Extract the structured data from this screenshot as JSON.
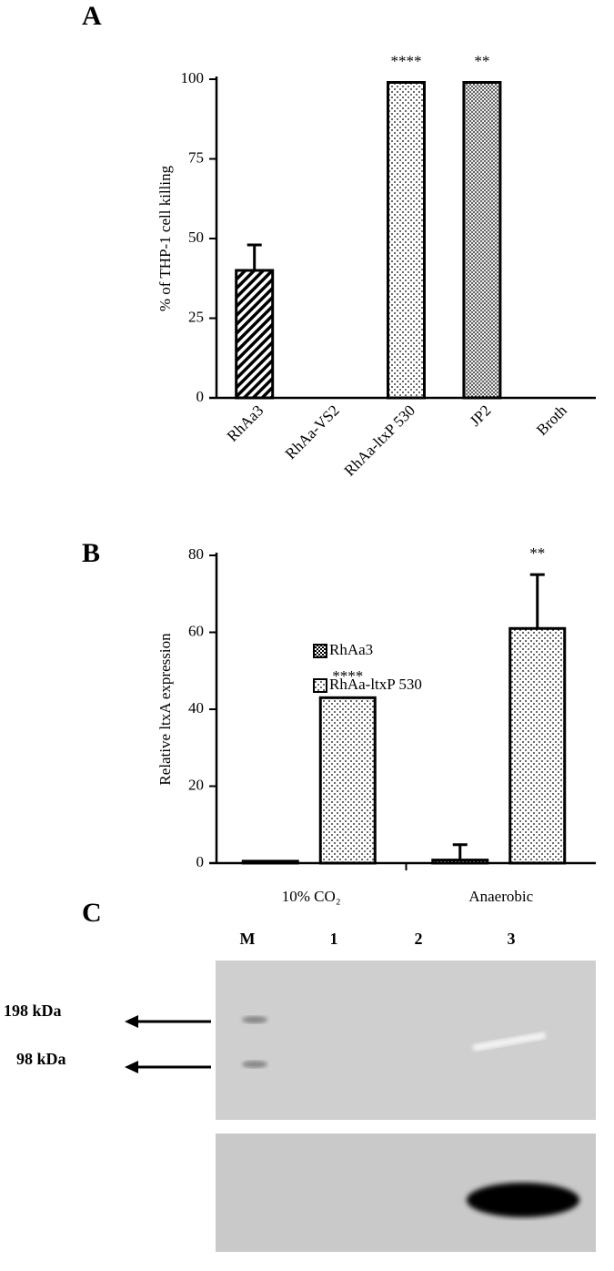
{
  "chart_data": [
    {
      "type": "bar",
      "panel": "A",
      "y_label": "% of THP-1 cell killing",
      "categories": [
        "RhAa3",
        "RhAa-VS2",
        "RhAa-ltxP 530",
        "JP2",
        "Broth"
      ],
      "values": [
        40,
        0,
        99,
        99,
        0
      ],
      "errors": [
        8,
        null,
        null,
        null,
        null
      ],
      "patterns": [
        "diagonal",
        "dots",
        "dots",
        "dense",
        "dots"
      ],
      "annotations": [
        null,
        null,
        "****",
        "**",
        null
      ],
      "ylim": [
        0,
        100
      ],
      "yticks": [
        0,
        25,
        50,
        75,
        100
      ]
    },
    {
      "type": "grouped-bar",
      "panel": "B",
      "y_label": "Relative ltxA expression",
      "categories": [
        "10% CO₂",
        "Anaerobic"
      ],
      "series": [
        {
          "name": "RhAa3",
          "values": [
            0.5,
            0.8
          ],
          "errors": [
            null,
            4
          ],
          "pattern": "checker"
        },
        {
          "name": "RhAa-ltxP 530",
          "values": [
            43,
            61
          ],
          "errors": [
            null,
            14
          ],
          "pattern": "dots",
          "annotations": [
            "****",
            "**"
          ]
        }
      ],
      "ylim": [
        0,
        80
      ],
      "yticks": [
        0,
        20,
        40,
        60,
        80
      ]
    }
  ],
  "gel": {
    "panel": "C",
    "lanes": [
      "M",
      "1",
      "2",
      "3"
    ],
    "markers": [
      "198 kDa",
      "98 kDa"
    ]
  }
}
